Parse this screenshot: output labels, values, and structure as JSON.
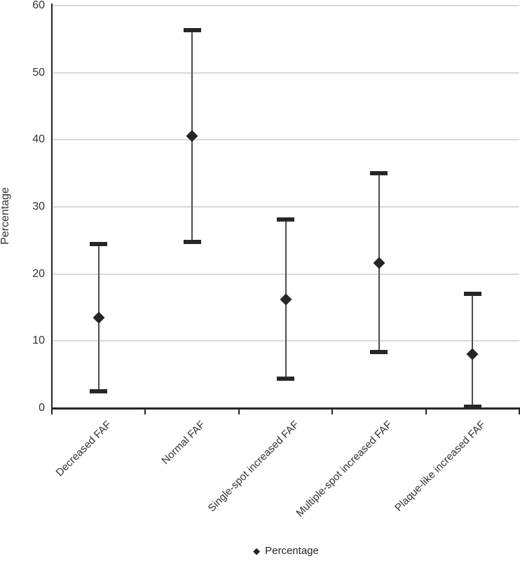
{
  "chart_data": {
    "type": "scatter",
    "title": "",
    "categories": [
      "Decreased FAF",
      "Normal FAF",
      "Single-spot increased FAF",
      "Multiple-spot increased FAF",
      "Plaque-like increased FAF"
    ],
    "series": [
      {
        "name": "Percentage",
        "marker": "diamond",
        "values": [
          13.5,
          40.6,
          16.2,
          21.6,
          8.1
        ],
        "error_low": [
          2.5,
          24.8,
          4.4,
          8.4,
          0.2
        ],
        "error_high": [
          24.5,
          56.3,
          28.1,
          35.0,
          17.0
        ]
      }
    ],
    "xlabel": "",
    "ylabel": "Percentage",
    "ylim": [
      0,
      60
    ],
    "yticks": [
      0,
      10,
      20,
      30,
      40,
      50,
      60
    ],
    "grid": true,
    "legend": {
      "position": "bottom",
      "label": "Percentage",
      "marker": "diamond-icon"
    }
  },
  "colors": {
    "marker": "#262626",
    "error_line": "#4d4d4d",
    "grid": "#d9d9d9",
    "axis": "#262626",
    "text": "#333333"
  }
}
